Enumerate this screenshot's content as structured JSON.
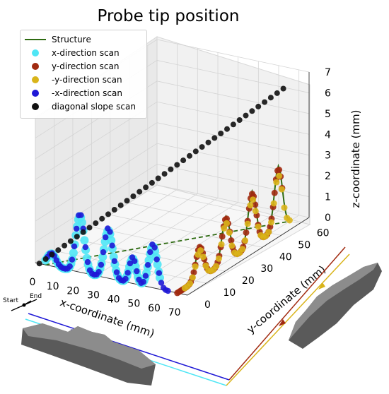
{
  "chart_data": {
    "type": "scatter",
    "projection": "3d",
    "title": "Probe tip position",
    "xlabel": "x-coordinate (mm)",
    "ylabel": "y-coordinate (mm)",
    "zlabel": "z-coordinate (mm)",
    "xticks": [
      "0",
      "10",
      "20",
      "30",
      "40",
      "50",
      "60",
      "70"
    ],
    "yticks": [
      "0",
      "10",
      "20",
      "30",
      "40",
      "50",
      "60"
    ],
    "zticks": [
      "0",
      "1",
      "2",
      "3",
      "4",
      "5",
      "6",
      "7"
    ],
    "xlim": [
      0,
      75
    ],
    "ylim": [
      0,
      65
    ],
    "zlim": [
      0,
      7
    ],
    "grid": true,
    "legend_position": "top-left",
    "series": [
      {
        "name": "Structure",
        "kind": "line",
        "color": "#2e6b12"
      },
      {
        "name": "x-direction scan",
        "color": "#4fe6f5"
      },
      {
        "name": "y-direction scan",
        "color": "#a12a10"
      },
      {
        "name": "-y-direction scan",
        "color": "#d9b41a"
      },
      {
        "name": "-x-direction scan",
        "color": "#1f18d6"
      },
      {
        "name": "diagonal slope scan",
        "color": "#111111"
      }
    ],
    "annotations": {
      "start": "Start",
      "end": "End"
    }
  }
}
